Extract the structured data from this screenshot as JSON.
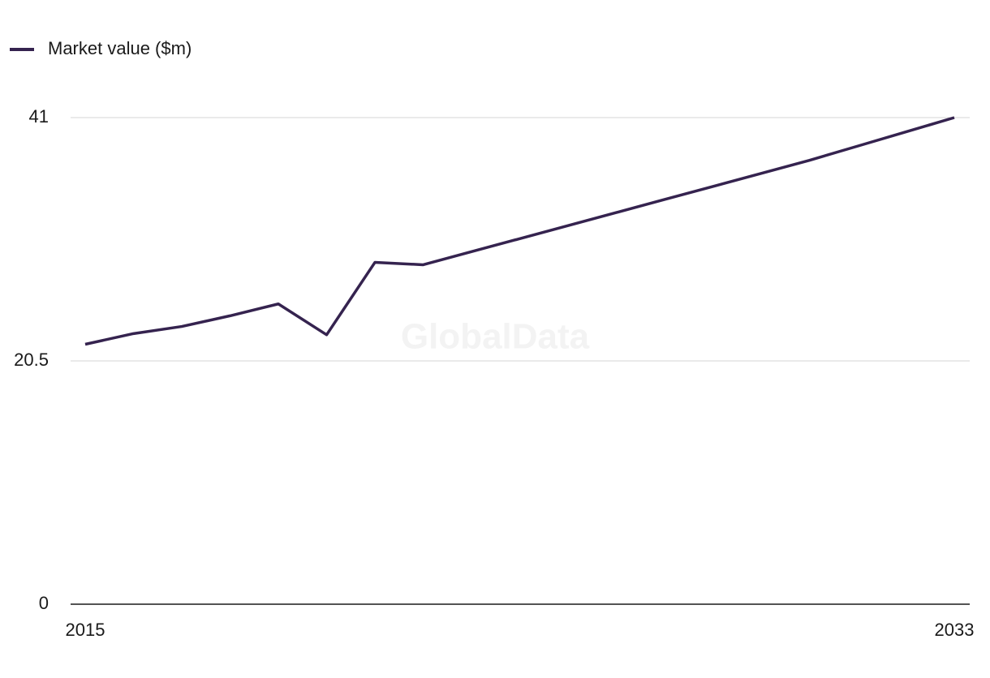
{
  "chart_data": {
    "type": "line",
    "legend": "top-left",
    "watermark": "GlobalData",
    "x": [
      2015,
      2016,
      2017,
      2018,
      2019,
      2020,
      2021,
      2022,
      2023,
      2024,
      2025,
      2026,
      2027,
      2028,
      2029,
      2030,
      2031,
      2032,
      2033
    ],
    "series": [
      {
        "name": "Market value ($m)",
        "color": "#35234f",
        "values": [
          21.9,
          22.8,
          23.4,
          24.3,
          25.3,
          22.7,
          28.8,
          28.6,
          29.7,
          30.8,
          31.9,
          33.0,
          34.1,
          35.2,
          36.3,
          37.4,
          38.6,
          39.8,
          41.0
        ]
      }
    ],
    "xlim": [
      2015,
      2033
    ],
    "xticks": [
      2015,
      2033
    ],
    "ylim": [
      0,
      41
    ],
    "yticks": [
      0,
      20.5,
      41
    ],
    "grid": true
  }
}
